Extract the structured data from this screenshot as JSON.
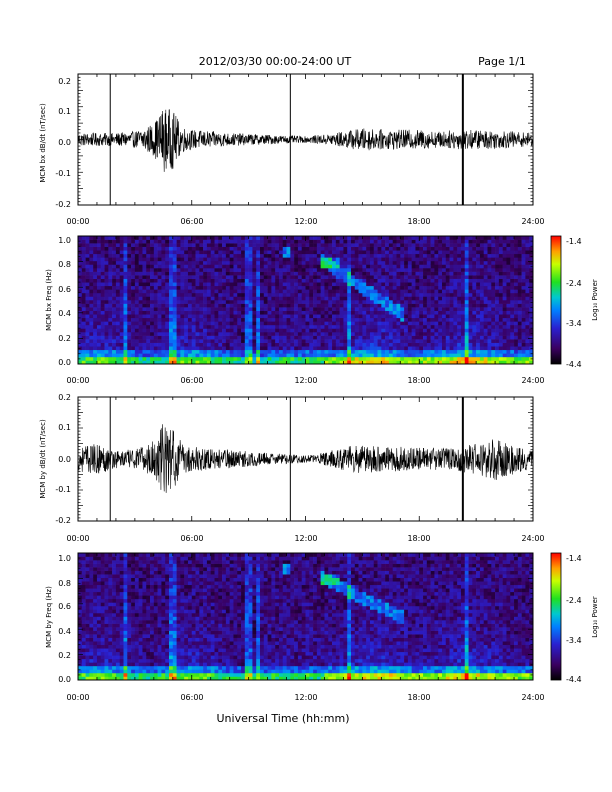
{
  "header": {
    "date_range": "2012/03/30  00:00-24:00 UT",
    "page": "Page 1/1"
  },
  "xlabel": "Universal Time (hh:mm)",
  "x_ticks": [
    "00:00",
    "06:00",
    "12:00",
    "18:00",
    "24:00"
  ],
  "colorbar": {
    "label": "Log₁₀ Power",
    "ticks": [
      "-1.4",
      "-2.4",
      "-3.4",
      "-4.4"
    ]
  },
  "chart_data": [
    {
      "type": "line",
      "title": "",
      "ylabel": "MCM bx dB/dt (nT/sec)",
      "x_range": [
        0,
        24
      ],
      "ylim": [
        -0.2,
        0.2
      ],
      "y_ticks": [
        "0.2",
        "0.1",
        "0.0",
        "-0.1",
        "-0.2"
      ],
      "spikes_hours": [
        1.7,
        11.2,
        20.3
      ],
      "envelope": {
        "x_hours": [
          0,
          2,
          3,
          4,
          4.5,
          5,
          5.5,
          6,
          8,
          10,
          11,
          12,
          13,
          14,
          15,
          16,
          17,
          18,
          19,
          20,
          21,
          22,
          23,
          24
        ],
        "amplitude": [
          0.02,
          0.02,
          0.025,
          0.05,
          0.1,
          0.09,
          0.04,
          0.03,
          0.02,
          0.015,
          0.012,
          0.01,
          0.015,
          0.025,
          0.035,
          0.03,
          0.03,
          0.03,
          0.025,
          0.03,
          0.03,
          0.028,
          0.025,
          0.02
        ]
      }
    },
    {
      "type": "heatmap",
      "ylabel": "MCM bx Freq (Hz)",
      "x_range": [
        0,
        24
      ],
      "ylim": [
        0,
        1
      ],
      "y_ticks": [
        "1.0",
        "0.8",
        "0.6",
        "0.4",
        "0.2",
        "0.0"
      ],
      "zlim": [
        -4.4,
        -1.4
      ],
      "features": "broadband low-frequency power below 0.1 Hz; enhanced bands near 06:00, 09:00 and 20:30; falling-tone emission 13:00-17:00 from 0.8 to 0.4 Hz"
    },
    {
      "type": "line",
      "ylabel": "MCM by dB/dt (nT/sec)",
      "x_range": [
        0,
        24
      ],
      "ylim": [
        -0.2,
        0.2
      ],
      "y_ticks": [
        "0.2",
        "0.1",
        "0.0",
        "-0.1",
        "-0.2"
      ],
      "spikes_hours": [
        1.7,
        11.2,
        20.3
      ],
      "envelope": {
        "x_hours": [
          0,
          1,
          2,
          3,
          4,
          4.5,
          5,
          5.5,
          6,
          8,
          10,
          11,
          12,
          13,
          14,
          15,
          16,
          17,
          18,
          19,
          20,
          21,
          22,
          23,
          24
        ],
        "amplitude": [
          0.04,
          0.05,
          0.03,
          0.03,
          0.06,
          0.12,
          0.1,
          0.05,
          0.04,
          0.03,
          0.02,
          0.015,
          0.012,
          0.02,
          0.04,
          0.05,
          0.04,
          0.04,
          0.04,
          0.035,
          0.04,
          0.05,
          0.07,
          0.05,
          0.03
        ]
      }
    },
    {
      "type": "heatmap",
      "ylabel": "MCM by Freq (Hz)",
      "x_range": [
        0,
        24
      ],
      "ylim": [
        0,
        1
      ],
      "y_ticks": [
        "1.0",
        "0.8",
        "0.6",
        "0.4",
        "0.2",
        "0.0"
      ],
      "zlim": [
        -4.4,
        -1.4
      ],
      "features": "broadband low-frequency power below 0.15 Hz; enhanced bands near 06:00, 09:00 and 20:30; falling-tone emission 13:00-17:00 from 0.8 to 0.5 Hz"
    }
  ]
}
